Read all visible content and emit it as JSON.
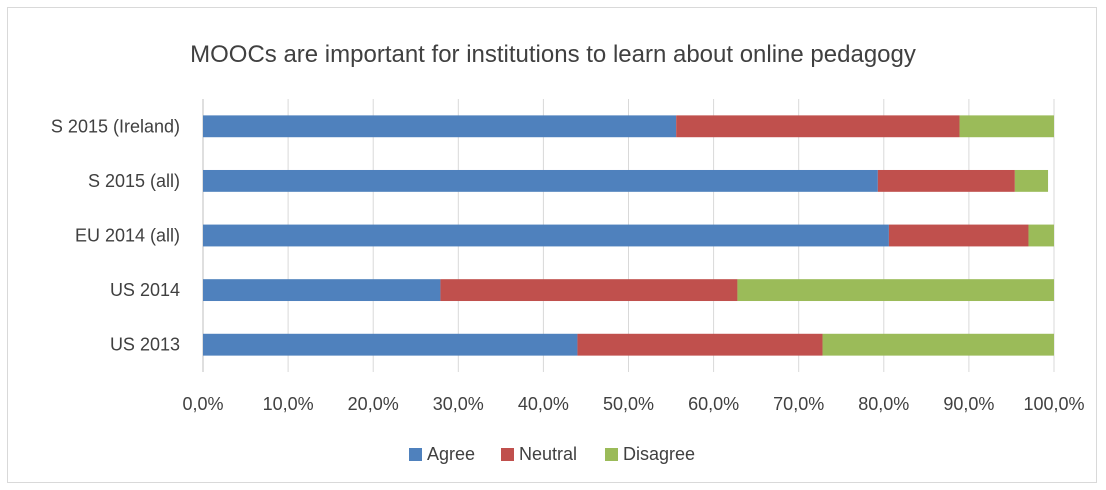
{
  "chart_data": {
    "type": "bar",
    "orientation": "horizontal",
    "stacked": true,
    "title": "MOOCs are important for institutions to learn about online pedagogy",
    "categories": [
      "S 2015 (Ireland)",
      "S 2015 (all)",
      "EU 2014 (all)",
      "US 2014",
      "US 2013"
    ],
    "series": [
      {
        "name": "Agree",
        "color": "#4f81bd",
        "values": [
          55.6,
          79.3,
          80.6,
          27.9,
          44.0
        ]
      },
      {
        "name": "Neutral",
        "color": "#c0504d",
        "values": [
          33.3,
          16.1,
          16.4,
          34.9,
          28.8
        ]
      },
      {
        "name": "Disagree",
        "color": "#9bbb59",
        "values": [
          11.1,
          3.9,
          3.0,
          37.2,
          27.2
        ]
      }
    ],
    "xlim": [
      0,
      100
    ],
    "xticks": [
      "0,0%",
      "10,0%",
      "20,0%",
      "30,0%",
      "40,0%",
      "50,0%",
      "60,0%",
      "70,0%",
      "80,0%",
      "90,0%",
      "100,0%"
    ],
    "grid": true,
    "legend_position": "bottom"
  }
}
